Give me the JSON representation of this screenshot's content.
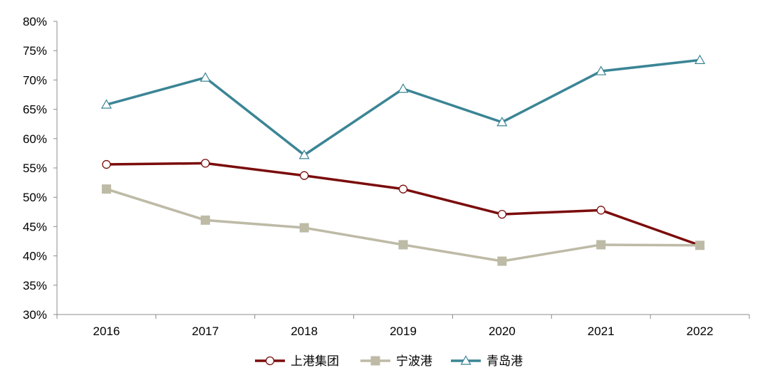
{
  "chart_data": {
    "type": "line",
    "categories": [
      "2016",
      "2017",
      "2018",
      "2019",
      "2020",
      "2021",
      "2022"
    ],
    "y_tick_labels": [
      "30%",
      "35%",
      "40%",
      "45%",
      "50%",
      "55%",
      "60%",
      "65%",
      "70%",
      "75%",
      "80%"
    ],
    "ylim": [
      30,
      80
    ],
    "y_unit": "%",
    "grid": false,
    "legend_position": "bottom-center",
    "series": [
      {
        "name": "上港集团",
        "marker": "circle-open",
        "color": "#7B0C0C",
        "values": [
          55.6,
          55.8,
          53.7,
          51.4,
          47.1,
          47.8,
          41.8
        ]
      },
      {
        "name": "宁波港",
        "marker": "square-filled",
        "color": "#BDBAA6",
        "values": [
          51.4,
          46.1,
          44.8,
          41.9,
          39.1,
          41.9,
          41.8
        ]
      },
      {
        "name": "青岛港",
        "marker": "triangle-open",
        "color": "#3B8595",
        "values": [
          65.8,
          70.4,
          57.2,
          68.5,
          62.8,
          71.5,
          73.4
        ]
      }
    ]
  }
}
